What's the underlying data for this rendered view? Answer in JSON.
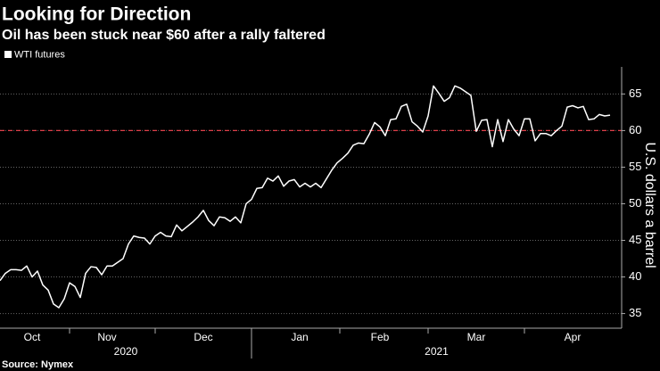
{
  "chart_data": {
    "type": "line",
    "title": "Looking for Direction",
    "subtitle": "Oil has been stuck near $60 after a rally faltered",
    "y_label": "U.S. dollars a barrel",
    "source": "Source: Nymex",
    "categories": [
      null,
      null,
      null,
      null,
      null,
      null,
      "Oct",
      null,
      null,
      null,
      null,
      null,
      null,
      null,
      null,
      null,
      null,
      null,
      null,
      null,
      "Nov",
      null,
      null,
      null,
      null,
      null,
      null,
      null,
      null,
      null,
      null,
      null,
      null,
      null,
      null,
      null,
      null,
      null,
      "Dec",
      null,
      null,
      null,
      null,
      null,
      null,
      null,
      null,
      null,
      null,
      null,
      null,
      null,
      null,
      null,
      null,
      null,
      "Jan",
      null,
      null,
      null,
      null,
      null,
      null,
      null,
      null,
      null,
      null,
      null,
      null,
      null,
      null,
      "Feb",
      null,
      null,
      null,
      null,
      null,
      null,
      null,
      null,
      null,
      null,
      null,
      null,
      null,
      null,
      null,
      null,
      null,
      "Mar",
      null,
      null,
      null,
      null,
      null,
      null,
      null,
      null,
      null,
      null,
      null,
      null,
      null,
      null,
      null,
      null,
      null,
      "Apr",
      null,
      null,
      null,
      null,
      null,
      null,
      null
    ],
    "years": [
      "2020",
      "2021"
    ],
    "series": [
      {
        "name": "WTI futures",
        "color": "#ffffff",
        "values": [
          39.5,
          40.5,
          41.0,
          41.0,
          40.9,
          41.5,
          40.0,
          40.8,
          38.9,
          38.2,
          36.3,
          35.8,
          37.0,
          39.2,
          38.7,
          37.2,
          40.5,
          41.4,
          41.3,
          40.3,
          41.5,
          41.5,
          42.0,
          42.5,
          44.5,
          45.6,
          45.4,
          45.3,
          44.5,
          45.6,
          46.1,
          45.6,
          45.5,
          47.1,
          46.3,
          46.9,
          47.5,
          48.2,
          49.1,
          47.7,
          47.0,
          48.2,
          48.1,
          47.6,
          48.2,
          47.4,
          50.0,
          50.6,
          52.1,
          52.2,
          53.5,
          53.1,
          53.8,
          52.4,
          53.1,
          53.3,
          52.3,
          52.8,
          52.3,
          52.8,
          52.2,
          53.4,
          54.6,
          55.6,
          56.2,
          56.9,
          58.0,
          58.3,
          58.2,
          59.5,
          61.1,
          60.5,
          59.3,
          61.5,
          61.6,
          63.3,
          63.6,
          61.2,
          60.6,
          59.8,
          62.0,
          66.1,
          65.1,
          64.0,
          64.5,
          66.1,
          65.8,
          65.3,
          64.8,
          59.9,
          61.4,
          61.5,
          57.8,
          61.5,
          58.5,
          61.5,
          60.2,
          59.3,
          61.6,
          61.6,
          58.6,
          59.6,
          59.6,
          59.3,
          60.0,
          60.6,
          63.2,
          63.4,
          63.1,
          63.3,
          61.5,
          61.6,
          62.2,
          62.0,
          62.1
        ]
      }
    ],
    "reference_line": {
      "value": 60,
      "color": "#e0404a"
    },
    "ylim": [
      33,
      68.7
    ],
    "yticks": [
      35,
      40,
      45,
      50,
      55,
      60,
      65
    ],
    "grid": true
  }
}
